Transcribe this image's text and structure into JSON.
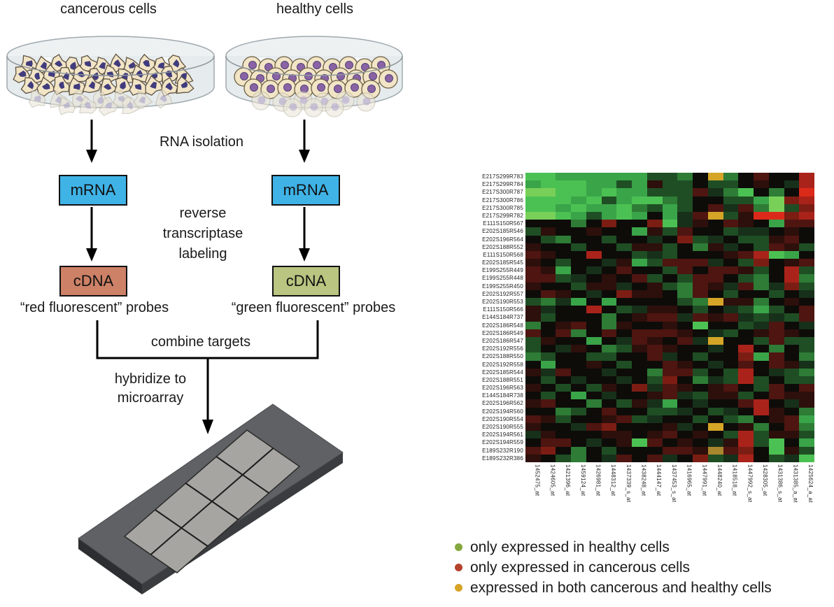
{
  "diagram": {
    "cancerous_title": "cancerous cells",
    "healthy_title": "healthy cells",
    "rna_isolation_label": "RNA isolation",
    "mrna_label": "mRNA",
    "reverse_transcriptase_label": "reverse\ntranscriptase\nlabeling",
    "cdna_label": "cDNA",
    "red_probes_label": "“red fluorescent” probes",
    "green_probes_label": "“green fluorescent” probes",
    "combine_label": "combine targets",
    "hybridize_label": "hybridize to\nmicroarray",
    "colors": {
      "mrna_box": "#3fb3e6",
      "cdna_red_box": "#cd8166",
      "cdna_green_box": "#b9c580",
      "arrow": "#000000"
    }
  },
  "chart_data": {
    "type": "heatmap",
    "rows": [
      "E217S299R783",
      "E217S299R784",
      "E217S300R787",
      "E217S300R786",
      "E217S300R785",
      "E217S299R782",
      "E111S150R567",
      "E202S185R546",
      "E202S196R564",
      "E202S188R552",
      "E111S150R568",
      "E202S185R545",
      "E199S255R449",
      "E199S255R448",
      "E199S255R450",
      "E202S192R557",
      "E202S190R553",
      "E111S150R566",
      "E144S184R737",
      "E202S186R548",
      "E202S186R549",
      "E202S186R547",
      "E202S192R556",
      "E202S188R550",
      "E202S192R558",
      "E202S185R544",
      "E202S188R551",
      "E202S196R563",
      "E144S184R738",
      "E202S196R562",
      "E202S194R560",
      "E202S190R554",
      "E202S190R555",
      "E202S194R561",
      "E202S194R559",
      "E189S232R190",
      "E189S232R386"
    ],
    "columns": [
      "1452475_at",
      "1424605_at",
      "1421396_at",
      "1459124_at",
      "1426981_at",
      "1448312_at",
      "1437339_s_at",
      "1438248_at",
      "1444147_at",
      "1437453_s_at",
      "1416965_at",
      "1447991_at",
      "1448240_at",
      "1418518_at",
      "1447992_s_at",
      "1428305_at",
      "1431386_s_at",
      "1431385_a_at",
      "1425624_a_at"
    ],
    "palette": {
      "k": "#0d0c09",
      "g1": "#17301a",
      "g2": "#1f4e24",
      "g3": "#2e7c36",
      "g4": "#3aa449",
      "g5": "#4cc153",
      "g6": "#79d058",
      "r1": "#2d0f0b",
      "r2": "#4e1511",
      "r3": "#7c1d14",
      "r4": "#aa231a",
      "r5": "#dc2a1a",
      "y": "#d5a528",
      "y2": "#a8862e"
    },
    "cells": [
      "g5 g5 g4 g4 g4 g4 g4 g4 g2 g2 g3 k y g3 k r2 k k r4",
      "g4 g5 g5 g5 g4 g4 g2 g4 r1 g2 g2 k g2 g2 k r1 k g1 r4",
      "g6 g6 g5 g5 g4 g5 g4 g4 g2 g2 g2 r2 g1 g3 g5 k g3 k r5",
      "g5 g5 g5 g4 g5 g2 g4 g5 g5 g3 g2 k k g2 g2 g4 g6 r3 r4",
      "g5 g5 g4 g5 g4 g4 g5 g3 g2 g4 g2 k r2 g1 r2 g3 g6 g2 r3",
      "g6 g6 g5 g4 g2 g4 g5 g4 k g4 g1 r2 y g2 r1 r5 r5 r3 r4",
      "k k k g3 k r3 k k r3 g5 g1 r1 k r2 r1 k g4 r2 r2",
      "g2 r1 k k r1 k k g4 r1 g2 r2 k k g2 g1 g1 k r1 k",
      "k g2 g3 k k g2 k k g1 k r3 g2 g1 k g2 g2 r1 r2 k",
      "r1 k k g2 k k g2 r1 r1 g2 k g3 r1 g1 k g2 r2 r1 g2",
      "r2 r1 k k r4 k k g2 g1 g2 k k k r1 r2 r4 g5 g4 k",
      "r1 k g2 k k g1 r1 g4 g2 r2 r2 r2 g1 k g2 r3 k r1 r2",
      "r2 r1 g4 k g1 k r2 k k g2 r2 k r2 r2 r1 g2 k r4 g2",
      "r2 r2 g2 g1 k r1 k r2 g2 k g2 r2 r2 k g2 g3 k r4 g3",
      "r1 k k g2 r1 r1 g1 k r1 g2 g3 r2 r1 g1 r2 g3 g1 r3 g2",
      "k r2 r1 k g1 k r3 r1 r1 k g3 r2 k g2 k k g2 k g1",
      "g2 g3 g1 g4 k g4 k k k k g2 g3 y r1 r1 g3 k r1 k",
      "r1 g1 k k r4 k g2 g1 r1 r1 k g2 k g1 g2 g4 g2 k r2",
      "r1 g2 k k k g3 k r1 r2 r2 g1 r2 r1 r2 g1 g2 g1 g2 r2",
      "g3 k r1 r2 k g3 r1 k k r1 k g5 k k g2 g1 r2 k g1",
      "r2 k r2 g3 k r2 k r2 r2 r2 r1 k g1 g2 k r1 r2 r1 k",
      "g2 r1 k k g4 k g1 r2 r1 k r2 g1 y k k g2 r2 g2 g2",
      "g2 k g1 r1 k g3 g2 r1 r2 r1 k k g1 k r4 k g3 k g2",
      "g3 g2 k k g2 g2 k k r2 g1 k g2 k k r3 g4 r2 k g3",
      "k g4 k k r1 k g2 k k r2 r1 k g1 k r2 k r2 r1 g1",
      "r1 g1 r2 k k g1 k k g3 r2 r2 g2 k g2 r4 k g1 g2 g3",
      "k g2 k g1 k k g1 k g2 r3 k g3 g1 g2 r4 g2 k g2 g2",
      "r1 k g2 k g2 r1 k r3 g1 r2 r1 k r1 r2 k g2 r2 k r2",
      "k g2 k g4 k g1 k k r1 r2 g1 g2 r1 r1 g2 k r2 r1 r1",
      "r1 r2 k k g3 k g2 r1 g1 g4 k g1 k k r2 r4 k g1 r1",
      "k k g3 g2 k r2 k k g2 g2 g1 k g2 g1 k r4 r1 k g3",
      "r2 r1 g2 k k r1 r2 g2 g1 k k g2 k g2 g3 k r1 r2 g4",
      "r1 k k g1 r2 r3 k k k r1 g1 k y k r1 g3 k r2 g3",
      "g1 r1 k k k r1 r1 k r1 r2 k r1 k g2 r4 g2 r1 r1 g2",
      "k r2 r2 k g1 k r1 g5 r2 k r1 k g1 r1 r4 g2 g5 k g4",
      "r2 r3 k g3 k g2 k k k r2 r2 r1 y2 r2 r3 k g5 r1 g2",
      "r1 k g2 g3 k g1 r2 k r2 g1 k r3 g2 g1 r4 k g2 g1 g5"
    ]
  },
  "legend": {
    "items": [
      {
        "color": "#84a83f",
        "label": "only expressed in healthy cells"
      },
      {
        "color": "#b5432c",
        "label": "only expressed in cancerous cells"
      },
      {
        "color": "#d6a426",
        "label": "expressed in both cancerous and healthy cells"
      }
    ]
  }
}
